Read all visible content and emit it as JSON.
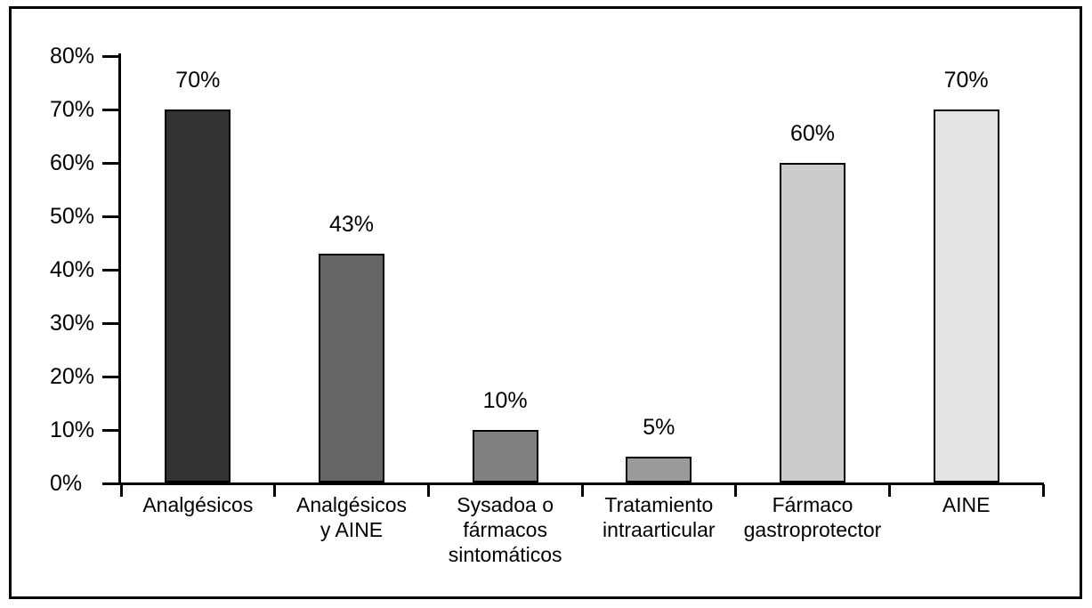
{
  "chart_data": {
    "type": "bar",
    "orientation": "vertical",
    "categories": [
      "Analgésicos",
      "Analgésicos y AINE",
      "Sysadoa o fármacos sintomáticos",
      "Tratamiento intraarticular",
      "Fármaco gastroprotector",
      "AINE"
    ],
    "category_display": [
      "Analgésicos",
      "Analgésicos\ny AINE",
      "Sysadoa o\nfármacos\nsintomáticos",
      "Tratamiento\nintraarticular",
      "Fármaco\ngastroprotector",
      "AINE"
    ],
    "values": [
      70,
      43,
      10,
      5,
      60,
      70
    ],
    "value_labels": [
      "70%",
      "43%",
      "10%",
      "5%",
      "60%",
      "70%"
    ],
    "bar_colors": [
      "#333333",
      "#666666",
      "#808080",
      "#9a9a9a",
      "#cccccc",
      "#e3e3e3"
    ],
    "bar_border_color": "#000000",
    "axis_color": "#000000",
    "y_axis": {
      "min": 0,
      "max": 80,
      "tick_step": 10,
      "tick_labels": [
        "0%",
        "10%",
        "20%",
        "30%",
        "40%",
        "50%",
        "60%",
        "70%",
        "80%"
      ]
    },
    "grid": false,
    "legend": false
  }
}
